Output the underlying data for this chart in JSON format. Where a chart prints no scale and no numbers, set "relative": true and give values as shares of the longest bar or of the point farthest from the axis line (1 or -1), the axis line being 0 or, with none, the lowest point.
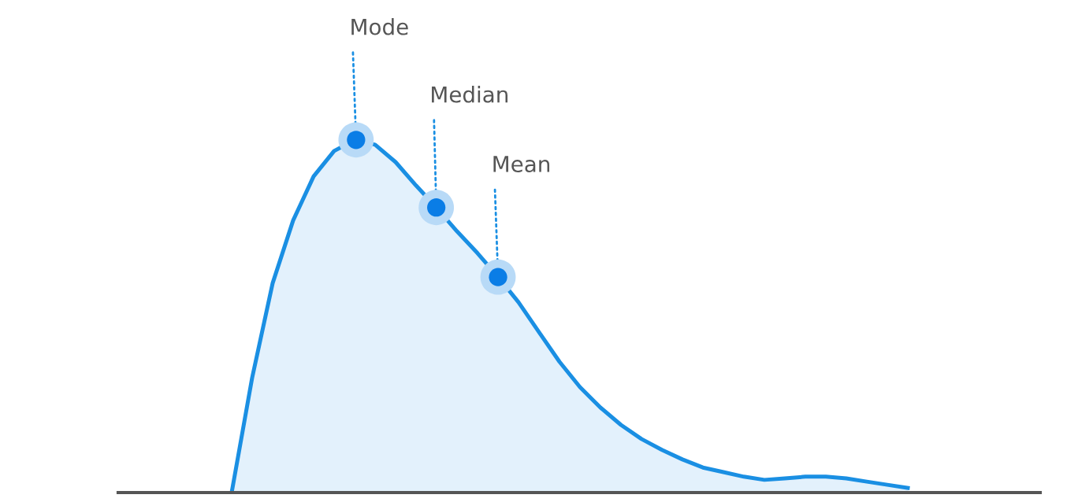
{
  "chart_data": {
    "type": "area",
    "relative": true,
    "categories": [
      null,
      null,
      null,
      null,
      null,
      null,
      null,
      null,
      null,
      null,
      null,
      null,
      null,
      null,
      null,
      null,
      null,
      null,
      null,
      null,
      null,
      null,
      null,
      null,
      null,
      null,
      null,
      null,
      null,
      null,
      null,
      null,
      null,
      null
    ],
    "series": [
      {
        "color": "#1a8fe3",
        "values": [
          0,
          0.326,
          0.594,
          0.772,
          0.897,
          0.969,
          1,
          0.987,
          0.9375,
          0.871,
          0.808,
          0.741,
          0.679,
          0.612,
          0.54,
          0.455,
          0.371,
          0.299,
          0.241,
          0.192,
          0.152,
          0.121,
          0.094,
          0.071,
          0.058,
          0.045,
          0.036,
          0.04,
          0.045,
          0.045,
          0.04,
          0.031,
          0.022,
          0.013
        ]
      }
    ],
    "annotations": [
      "Mode",
      "Median",
      "Mean"
    ]
  }
}
